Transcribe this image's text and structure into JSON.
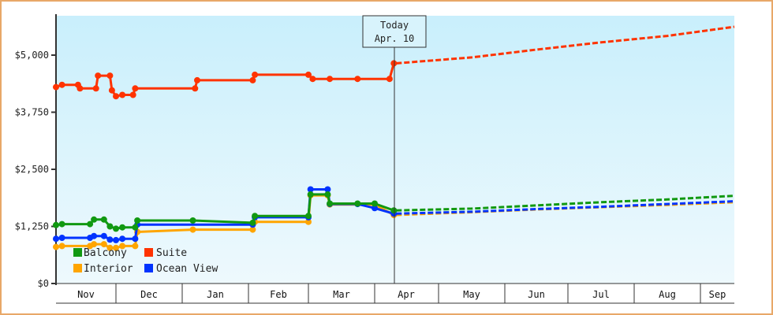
{
  "chart_data": {
    "type": "line",
    "title": "",
    "xlabel": "",
    "ylabel": "",
    "ylim": [
      0,
      5850
    ],
    "y_ticks": [
      {
        "value": 0,
        "label": "$0"
      },
      {
        "value": 1250,
        "label": "$1,250"
      },
      {
        "value": 2500,
        "label": "$2,500"
      },
      {
        "value": 3750,
        "label": "$3,750"
      },
      {
        "value": 5000,
        "label": "$5,000"
      }
    ],
    "months": [
      "Nov",
      "Dec",
      "Jan",
      "Feb",
      "Mar",
      "Apr",
      "May",
      "Jun",
      "Jul",
      "Aug",
      "Sep"
    ],
    "today_marker": {
      "line1": "Today",
      "line2": "Apr. 10"
    },
    "legend": [
      {
        "name": "Balcony",
        "color": "#119911"
      },
      {
        "name": "Suite",
        "color": "#ff3300"
      },
      {
        "name": "Interior",
        "color": "#ffa500"
      },
      {
        "name": "Ocean View",
        "color": "#0033ff"
      }
    ],
    "series": [
      {
        "name": "Suite",
        "color": "#ff3300",
        "historical": [
          {
            "x": "Nov 1",
            "y": 4300
          },
          {
            "x": "Nov 4",
            "y": 4350
          },
          {
            "x": "Nov 12",
            "y": 4350
          },
          {
            "x": "Nov 13",
            "y": 4270
          },
          {
            "x": "Nov 21",
            "y": 4270
          },
          {
            "x": "Nov 22",
            "y": 4550
          },
          {
            "x": "Nov 28",
            "y": 4550
          },
          {
            "x": "Nov 29",
            "y": 4230
          },
          {
            "x": "Dec 1",
            "y": 4100
          },
          {
            "x": "Dec 4",
            "y": 4130
          },
          {
            "x": "Dec 9",
            "y": 4130
          },
          {
            "x": "Dec 10",
            "y": 4270
          },
          {
            "x": "Jan 7",
            "y": 4270
          },
          {
            "x": "Jan 8",
            "y": 4450
          },
          {
            "x": "Feb 3",
            "y": 4450
          },
          {
            "x": "Feb 4",
            "y": 4570
          },
          {
            "x": "Mar 1",
            "y": 4570
          },
          {
            "x": "Mar 3",
            "y": 4480
          },
          {
            "x": "Mar 11",
            "y": 4480
          },
          {
            "x": "Mar 24",
            "y": 4480
          },
          {
            "x": "Apr 8",
            "y": 4480
          },
          {
            "x": "Apr 10",
            "y": 4820
          }
        ],
        "projected": [
          {
            "x": "Apr 10",
            "y": 4820
          },
          {
            "x": "May",
            "y": 4950
          },
          {
            "x": "Jun",
            "y": 5120
          },
          {
            "x": "Jul",
            "y": 5280
          },
          {
            "x": "Aug",
            "y": 5420
          },
          {
            "x": "Sep",
            "y": 5620
          }
        ]
      },
      {
        "name": "Balcony",
        "color": "#119911",
        "historical": [
          {
            "x": "Nov 1",
            "y": 1280
          },
          {
            "x": "Nov 4",
            "y": 1300
          },
          {
            "x": "Nov 18",
            "y": 1300
          },
          {
            "x": "Nov 20",
            "y": 1400
          },
          {
            "x": "Nov 25",
            "y": 1400
          },
          {
            "x": "Nov 28",
            "y": 1250
          },
          {
            "x": "Dec 1",
            "y": 1200
          },
          {
            "x": "Dec 4",
            "y": 1230
          },
          {
            "x": "Dec 10",
            "y": 1230
          },
          {
            "x": "Dec 11",
            "y": 1380
          },
          {
            "x": "Jan 6",
            "y": 1380
          },
          {
            "x": "Feb 3",
            "y": 1330
          },
          {
            "x": "Feb 4",
            "y": 1480
          },
          {
            "x": "Mar 1",
            "y": 1480
          },
          {
            "x": "Mar 2",
            "y": 1950
          },
          {
            "x": "Mar 10",
            "y": 1950
          },
          {
            "x": "Mar 11",
            "y": 1750
          },
          {
            "x": "Mar 24",
            "y": 1750
          },
          {
            "x": "Apr 1",
            "y": 1750
          },
          {
            "x": "Apr 10",
            "y": 1600
          }
        ],
        "projected": [
          {
            "x": "Apr 10",
            "y": 1600
          },
          {
            "x": "May",
            "y": 1640
          },
          {
            "x": "Jun",
            "y": 1710
          },
          {
            "x": "Jul",
            "y": 1780
          },
          {
            "x": "Aug",
            "y": 1840
          },
          {
            "x": "Sep",
            "y": 1920
          }
        ]
      },
      {
        "name": "Ocean View",
        "color": "#0033ff",
        "historical": [
          {
            "x": "Nov 1",
            "y": 980
          },
          {
            "x": "Nov 4",
            "y": 1000
          },
          {
            "x": "Nov 18",
            "y": 1000
          },
          {
            "x": "Nov 20",
            "y": 1040
          },
          {
            "x": "Nov 25",
            "y": 1040
          },
          {
            "x": "Nov 28",
            "y": 960
          },
          {
            "x": "Dec 1",
            "y": 950
          },
          {
            "x": "Dec 4",
            "y": 980
          },
          {
            "x": "Dec 10",
            "y": 980
          },
          {
            "x": "Dec 11",
            "y": 1290
          },
          {
            "x": "Feb 3",
            "y": 1290
          },
          {
            "x": "Feb 4",
            "y": 1450
          },
          {
            "x": "Mar 1",
            "y": 1450
          },
          {
            "x": "Mar 2",
            "y": 2060
          },
          {
            "x": "Mar 10",
            "y": 2060
          },
          {
            "x": "Mar 11",
            "y": 1740
          },
          {
            "x": "Mar 24",
            "y": 1740
          },
          {
            "x": "Apr 1",
            "y": 1650
          },
          {
            "x": "Apr 10",
            "y": 1530
          }
        ],
        "projected": [
          {
            "x": "Apr 10",
            "y": 1530
          },
          {
            "x": "May",
            "y": 1570
          },
          {
            "x": "Jun",
            "y": 1630
          },
          {
            "x": "Jul",
            "y": 1680
          },
          {
            "x": "Aug",
            "y": 1740
          },
          {
            "x": "Sep",
            "y": 1800
          }
        ]
      },
      {
        "name": "Interior",
        "color": "#ffa500",
        "historical": [
          {
            "x": "Nov 1",
            "y": 800
          },
          {
            "x": "Nov 4",
            "y": 820
          },
          {
            "x": "Nov 18",
            "y": 820
          },
          {
            "x": "Nov 20",
            "y": 860
          },
          {
            "x": "Nov 25",
            "y": 860
          },
          {
            "x": "Nov 28",
            "y": 780
          },
          {
            "x": "Dec 1",
            "y": 780
          },
          {
            "x": "Dec 4",
            "y": 820
          },
          {
            "x": "Dec 10",
            "y": 820
          },
          {
            "x": "Dec 11",
            "y": 1130
          },
          {
            "x": "Jan 6",
            "y": 1180
          },
          {
            "x": "Feb 3",
            "y": 1180
          },
          {
            "x": "Feb 4",
            "y": 1350
          },
          {
            "x": "Mar 1",
            "y": 1350
          },
          {
            "x": "Mar 2",
            "y": 1930
          },
          {
            "x": "Mar 10",
            "y": 1930
          },
          {
            "x": "Mar 11",
            "y": 1730
          },
          {
            "x": "Apr 1",
            "y": 1730
          },
          {
            "x": "Apr 10",
            "y": 1500
          }
        ],
        "projected": [
          {
            "x": "Apr 10",
            "y": 1500
          },
          {
            "x": "May",
            "y": 1560
          },
          {
            "x": "Jun",
            "y": 1620
          },
          {
            "x": "Jul",
            "y": 1670
          },
          {
            "x": "Aug",
            "y": 1720
          },
          {
            "x": "Sep",
            "y": 1780
          }
        ]
      }
    ],
    "grid": false,
    "legend_position": "bottom-left inside plot"
  }
}
